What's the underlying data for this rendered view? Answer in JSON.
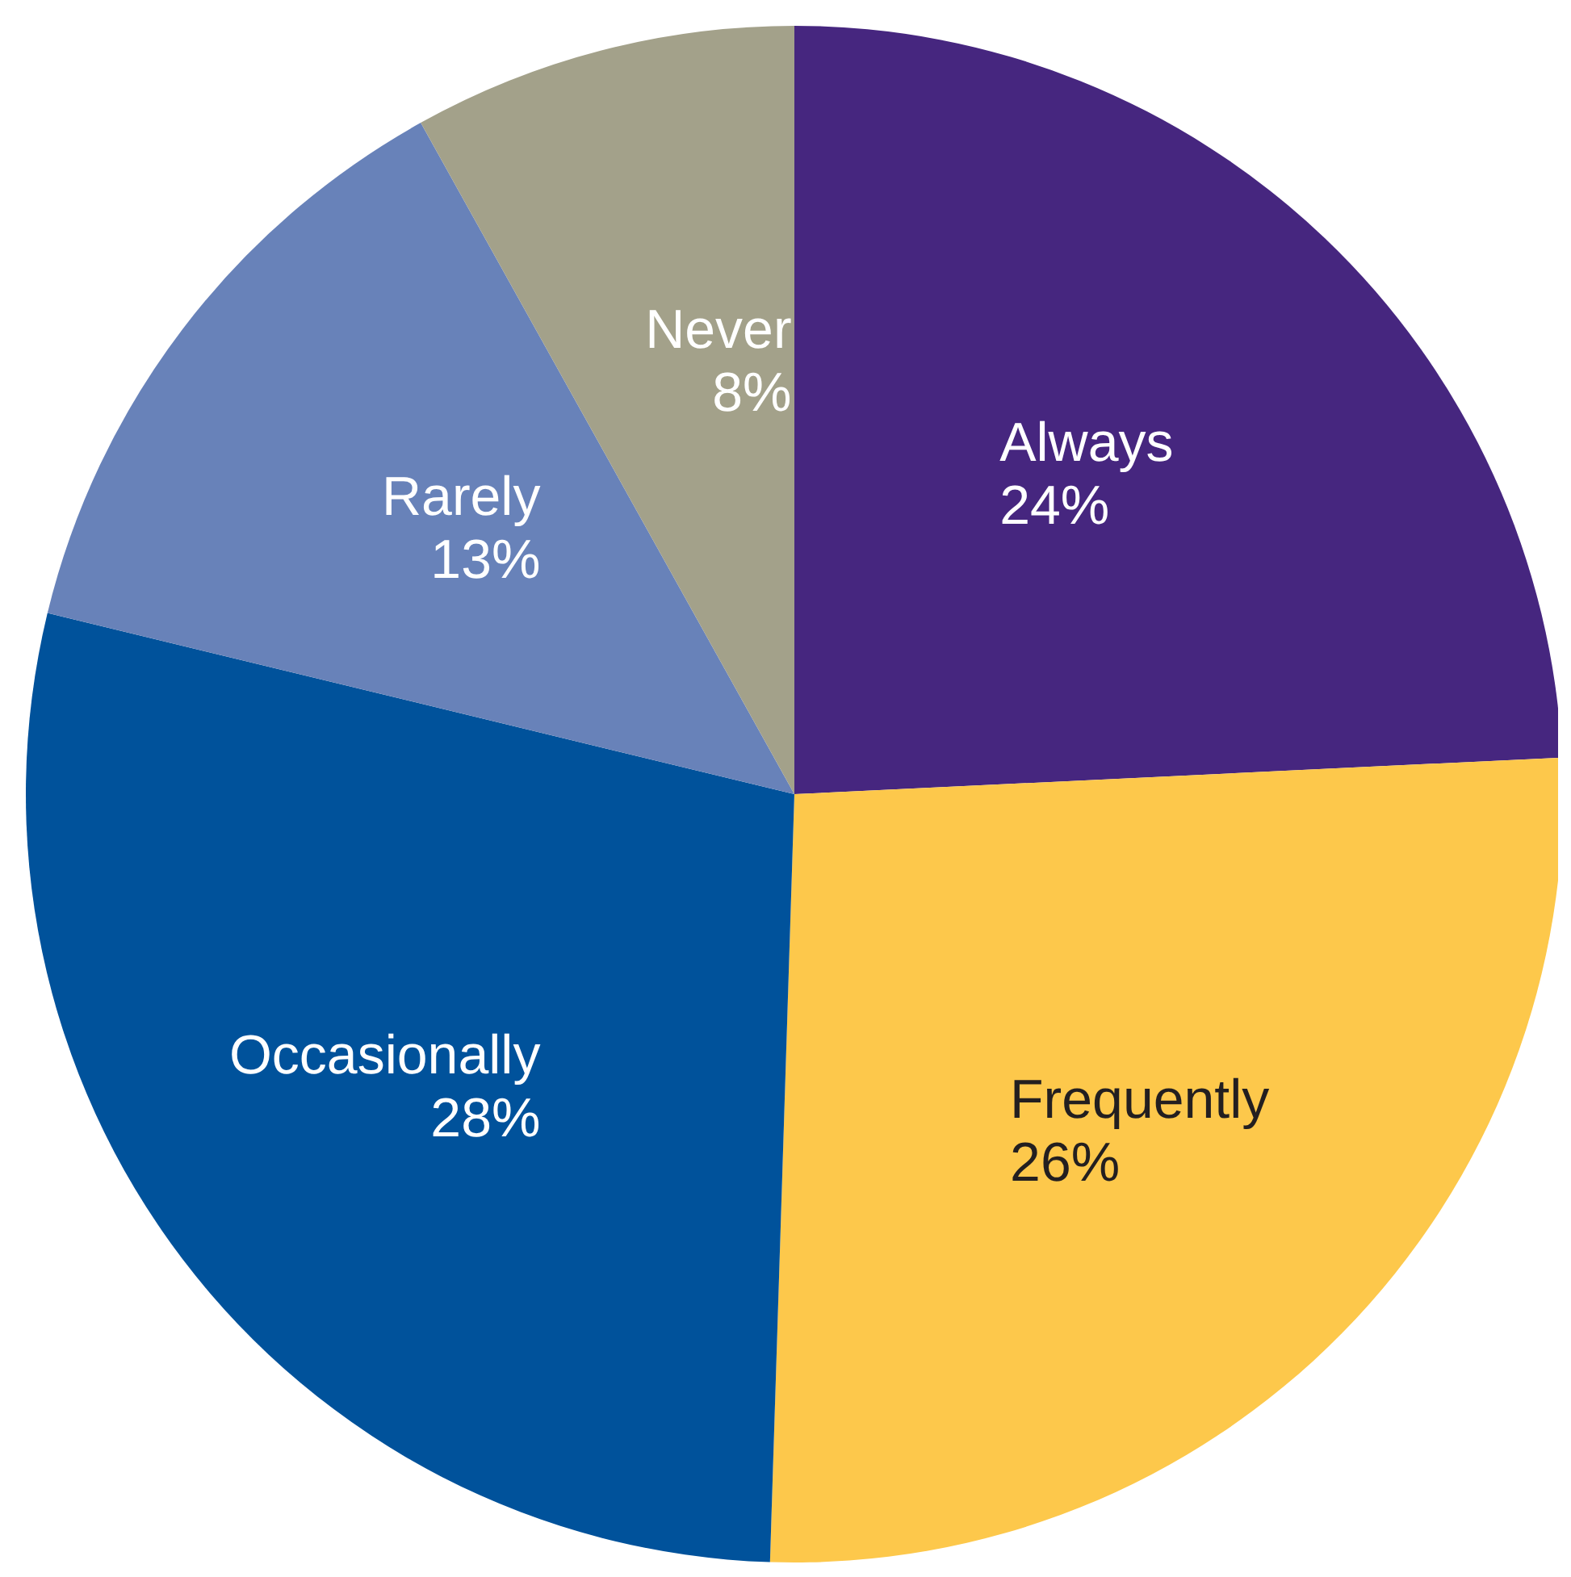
{
  "chart_data": {
    "type": "pie",
    "categories": [
      "Always",
      "Frequently",
      "Occasionally",
      "Rarely",
      "Never"
    ],
    "values": [
      24,
      26,
      28,
      13,
      8
    ],
    "value_labels": [
      "24%",
      "26%",
      "28%",
      "13%",
      "8%"
    ],
    "colors": [
      "#46267f",
      "#fdc84b",
      "#00529b",
      "#6882b9",
      "#a3a18a"
    ]
  }
}
